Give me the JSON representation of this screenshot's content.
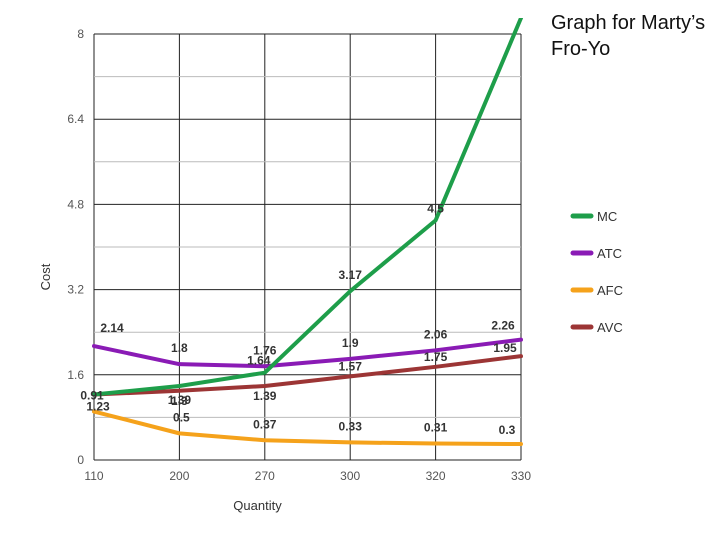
{
  "side_title": "Graph for Marty’s Fro-Yo",
  "chart_data": {
    "type": "line",
    "title": "",
    "xlabel": "Quantity",
    "ylabel": "Cost",
    "x": [
      "110",
      "200",
      "270",
      "300",
      "320",
      "330"
    ],
    "yticks": [
      "0",
      "1.6",
      "3.2",
      "4.8",
      "6.4",
      "8"
    ],
    "ylim": [
      0,
      8
    ],
    "grid": true,
    "legend_position": "right",
    "series": [
      {
        "name": "MC",
        "color": "#1e9e4a",
        "points": [
          [
            110,
            1.23
          ],
          [
            200,
            1.39
          ],
          [
            270,
            1.64
          ],
          [
            300,
            3.17
          ],
          [
            320,
            4.5
          ],
          [
            330,
            8.3
          ]
        ],
        "labels": [
          {
            "text": "1.23",
            "x": 110,
            "y": 1.23
          },
          {
            "text": "1.39",
            "x": 200,
            "y": 1.39
          },
          {
            "text": "1.64",
            "x": 270,
            "y": 1.64
          },
          {
            "text": "3.17",
            "x": 300,
            "y": 3.17
          },
          {
            "text": "4.5",
            "x": 320,
            "y": 4.5
          }
        ]
      },
      {
        "name": "ATC",
        "color": "#8a1bb5",
        "points": [
          [
            110,
            2.14
          ],
          [
            200,
            1.8
          ],
          [
            270,
            1.76
          ],
          [
            300,
            1.9
          ],
          [
            320,
            2.06
          ],
          [
            330,
            2.26
          ]
        ],
        "labels": [
          {
            "text": "2.14",
            "x": 110,
            "y": 2.14
          },
          {
            "text": "1.8",
            "x": 200,
            "y": 1.8
          },
          {
            "text": "1.76",
            "x": 270,
            "y": 1.76
          },
          {
            "text": "1.9",
            "x": 300,
            "y": 1.9
          },
          {
            "text": "2.06",
            "x": 320,
            "y": 2.06
          },
          {
            "text": "2.26",
            "x": 330,
            "y": 2.26
          }
        ]
      },
      {
        "name": "AFC",
        "color": "#f5a21b",
        "points": [
          [
            110,
            0.91
          ],
          [
            200,
            0.5
          ],
          [
            270,
            0.37
          ],
          [
            300,
            0.33
          ],
          [
            320,
            0.31
          ],
          [
            330,
            0.3
          ]
        ],
        "labels": [
          {
            "text": "0.91",
            "x": 110,
            "y": 0.91
          },
          {
            "text": "0.5",
            "x": 200,
            "y": 0.5
          },
          {
            "text": "0.37",
            "x": 270,
            "y": 0.37
          },
          {
            "text": "0.33",
            "x": 300,
            "y": 0.33
          },
          {
            "text": "0.31",
            "x": 320,
            "y": 0.31
          },
          {
            "text": "0.3",
            "x": 330,
            "y": 0.3
          }
        ]
      },
      {
        "name": "AVC",
        "color": "#9c3535",
        "points": [
          [
            110,
            1.23
          ],
          [
            200,
            1.3
          ],
          [
            270,
            1.39
          ],
          [
            300,
            1.57
          ],
          [
            320,
            1.75
          ],
          [
            330,
            1.95
          ]
        ],
        "labels": [
          {
            "text": "1.3",
            "x": 200,
            "y": 1.3
          },
          {
            "text": "1.39",
            "x": 270,
            "y": 1.39
          },
          {
            "text": "1.57",
            "x": 300,
            "y": 1.57
          },
          {
            "text": "1.75",
            "x": 320,
            "y": 1.75
          },
          {
            "text": "1.95",
            "x": 330,
            "y": 1.95
          }
        ]
      }
    ]
  }
}
